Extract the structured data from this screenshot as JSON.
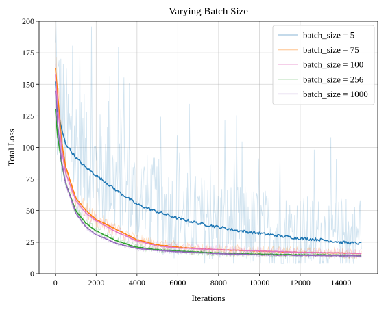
{
  "chart_data": {
    "type": "line",
    "title": "Varying Batch Size",
    "xlabel": "Iterations",
    "ylabel": "Total Loss",
    "xlim": [
      -800,
      15800
    ],
    "ylim": [
      0,
      200
    ],
    "xticks": [
      0,
      2000,
      4000,
      6000,
      8000,
      10000,
      12000,
      14000
    ],
    "yticks": [
      0,
      25,
      50,
      75,
      100,
      125,
      150,
      175,
      200
    ],
    "grid": true,
    "legend_position": "top-right",
    "series": [
      {
        "name": "batch_size = 5",
        "color": "#1f77b4",
        "raw_spread": 22,
        "smoothed": {
          "x": [
            0,
            100,
            300,
            500,
            1000,
            1500,
            2000,
            2500,
            3000,
            4000,
            5000,
            6000,
            7000,
            8000,
            9000,
            10000,
            11000,
            12000,
            13000,
            14000,
            15000
          ],
          "y": [
            152,
            130,
            115,
            103,
            92,
            84,
            78,
            72,
            66,
            55,
            49,
            44,
            40,
            37,
            34,
            32,
            30,
            28,
            27,
            25,
            24
          ]
        }
      },
      {
        "name": "batch_size = 75",
        "color": "#ff7f0e",
        "raw_spread": 5,
        "smoothed": {
          "x": [
            0,
            100,
            300,
            500,
            1000,
            1500,
            2000,
            3000,
            4000,
            5000,
            6000,
            8000,
            10000,
            12000,
            14000,
            15000
          ],
          "y": [
            163,
            145,
            105,
            85,
            60,
            50,
            43,
            35,
            27,
            23,
            21,
            19,
            18,
            17,
            16.5,
            16
          ]
        }
      },
      {
        "name": "batch_size = 100",
        "color": "#e377c2",
        "raw_spread": 4,
        "smoothed": {
          "x": [
            0,
            100,
            300,
            500,
            1000,
            1500,
            2000,
            3000,
            4000,
            5000,
            6000,
            8000,
            10000,
            12000,
            14000,
            15000
          ],
          "y": [
            158,
            135,
            100,
            80,
            58,
            48,
            42,
            33,
            26,
            22,
            20.5,
            19,
            18,
            17,
            16.5,
            16
          ]
        }
      },
      {
        "name": "batch_size = 256",
        "color": "#2ca02c",
        "raw_spread": 3,
        "smoothed": {
          "x": [
            0,
            100,
            300,
            500,
            1000,
            1500,
            2000,
            3000,
            4000,
            5000,
            6000,
            8000,
            10000,
            12000,
            14000,
            15000
          ],
          "y": [
            130,
            110,
            88,
            72,
            50,
            40,
            34,
            26,
            21,
            19,
            18,
            16.5,
            15.5,
            15,
            14.8,
            14.5
          ]
        }
      },
      {
        "name": "batch_size = 1000",
        "color": "#9467bd",
        "raw_spread": 2,
        "smoothed": {
          "x": [
            0,
            100,
            300,
            500,
            1000,
            1500,
            2000,
            3000,
            4000,
            5000,
            6000,
            8000,
            10000,
            12000,
            14000,
            15000
          ],
          "y": [
            145,
            120,
            90,
            72,
            48,
            37,
            31,
            24,
            20,
            18.5,
            17.5,
            16,
            15,
            14.5,
            14.2,
            14
          ]
        }
      }
    ]
  }
}
